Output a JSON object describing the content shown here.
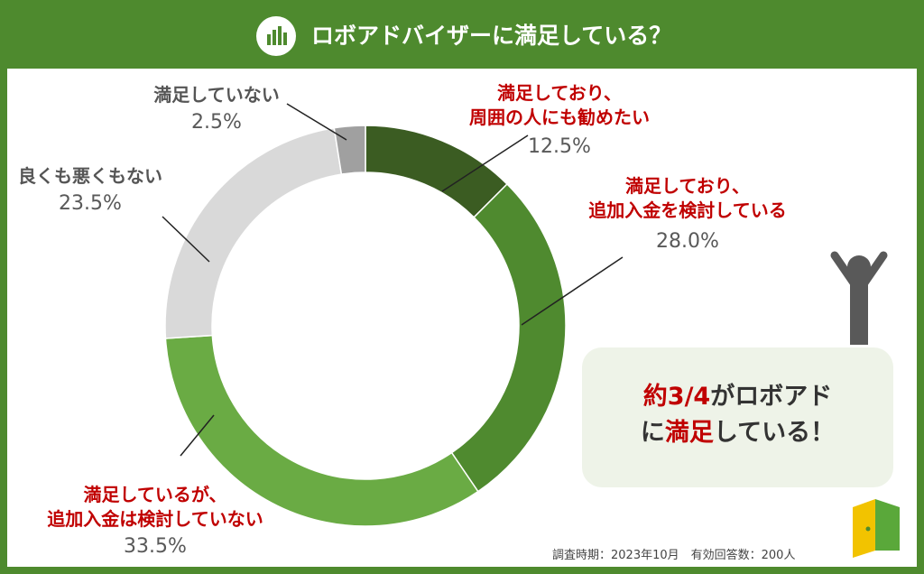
{
  "chart_data": {
    "type": "donut",
    "title": "ロボアドバイザーに満足している？",
    "categories": [
      "満足しており、\n周囲の人にも勧めたい",
      "満足しており、\n追加入金を検討している",
      "満足しているが、\n追加入金は検討していない",
      "良くも悪くもない",
      "満足していない"
    ],
    "values": [
      12.5,
      28.0,
      33.5,
      23.5,
      2.5
    ],
    "value_labels": [
      "12.5%",
      "28.0%",
      "33.5%",
      "23.5%",
      "2.5%"
    ],
    "colors": [
      "#3b5c22",
      "#4f8a2f",
      "#6aab44",
      "#d9d9d9",
      "#a0a0a0"
    ],
    "label_colors": [
      "#c00000",
      "#c00000",
      "#c00000",
      "#555555",
      "#555555"
    ]
  },
  "callout": [
    [
      {
        "text": "約3/4",
        "color": "#c00000"
      },
      {
        "text": "がロボアド",
        "color": "#333333"
      }
    ],
    [
      {
        "text": "に",
        "color": "#333333"
      },
      {
        "text": "満足",
        "color": "#c00000"
      },
      {
        "text": "している！",
        "color": "#333333"
      }
    ]
  ],
  "footnote": "調査時期：2023年10月　有効回答数：200人"
}
